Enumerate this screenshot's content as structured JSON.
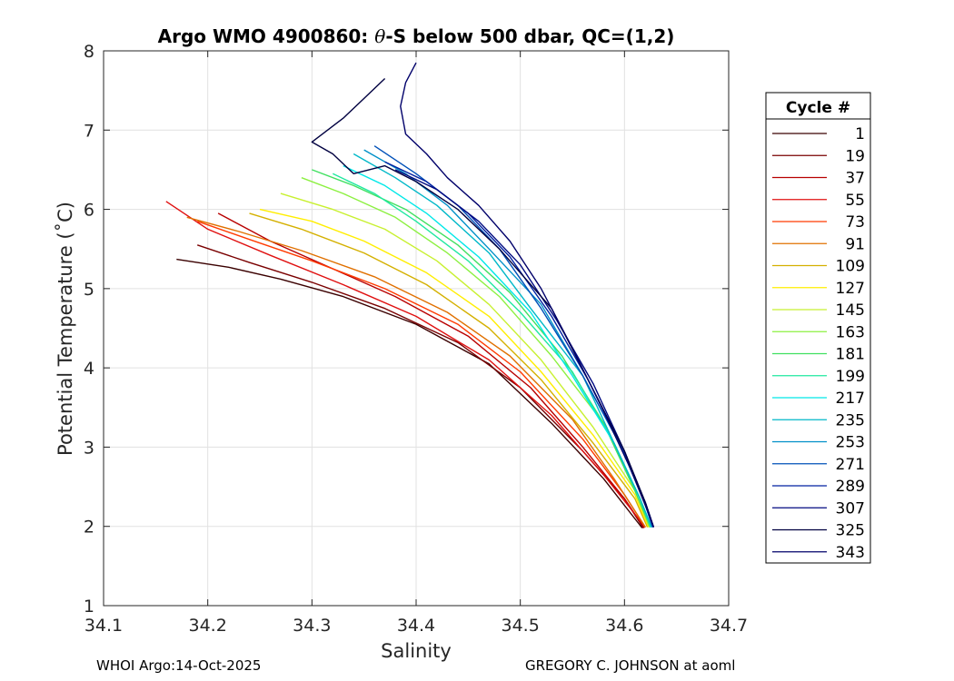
{
  "chart_data": {
    "type": "line",
    "title": {
      "prefix": "Argo WMO 4900860: ",
      "theta": "θ",
      "suffix": "-S below 500 dbar,  QC=(1,2)"
    },
    "xlabel": "Salinity",
    "ylabel": "Potential Temperature (˚C)",
    "xlim": [
      34.1,
      34.7
    ],
    "ylim": [
      1,
      8
    ],
    "xticks": [
      "34.1",
      "34.2",
      "34.3",
      "34.4",
      "34.5",
      "34.6",
      "34.7"
    ],
    "yticks": [
      "1",
      "2",
      "3",
      "4",
      "5",
      "6",
      "7",
      "8"
    ],
    "grid": true,
    "legend": {
      "title": "Cycle #",
      "placement": "right",
      "entries": [
        {
          "label": "1",
          "color": "#3a0000"
        },
        {
          "label": "19",
          "color": "#7a0000"
        },
        {
          "label": "37",
          "color": "#b80000"
        },
        {
          "label": "55",
          "color": "#e01010"
        },
        {
          "label": "73",
          "color": "#ff3a00"
        },
        {
          "label": "91",
          "color": "#e07000"
        },
        {
          "label": "109",
          "color": "#d4b000"
        },
        {
          "label": "127",
          "color": "#ffee00"
        },
        {
          "label": "145",
          "color": "#c8f030"
        },
        {
          "label": "163",
          "color": "#8cf040"
        },
        {
          "label": "181",
          "color": "#40e060"
        },
        {
          "label": "199",
          "color": "#20e8a0"
        },
        {
          "label": "217",
          "color": "#00e8e8"
        },
        {
          "label": "235",
          "color": "#00b8c8"
        },
        {
          "label": "253",
          "color": "#0090c8"
        },
        {
          "label": "271",
          "color": "#0050b8"
        },
        {
          "label": "289",
          "color": "#0020a0"
        },
        {
          "label": "307",
          "color": "#000a80"
        },
        {
          "label": "325",
          "color": "#000040"
        },
        {
          "label": "343",
          "color": "#00006a"
        }
      ]
    },
    "series": [
      {
        "name": "1",
        "color": "#3a0000",
        "points": [
          [
            34.17,
            5.37
          ],
          [
            34.22,
            5.27
          ],
          [
            34.27,
            5.12
          ],
          [
            34.33,
            4.9
          ],
          [
            34.4,
            4.55
          ],
          [
            34.47,
            4.05
          ],
          [
            34.53,
            3.3
          ],
          [
            34.58,
            2.6
          ],
          [
            34.617,
            1.98
          ]
        ]
      },
      {
        "name": "19",
        "color": "#7a0000",
        "points": [
          [
            34.19,
            5.55
          ],
          [
            34.24,
            5.33
          ],
          [
            34.3,
            5.08
          ],
          [
            34.37,
            4.75
          ],
          [
            34.44,
            4.32
          ],
          [
            34.5,
            3.75
          ],
          [
            34.56,
            2.95
          ],
          [
            34.6,
            2.35
          ],
          [
            34.618,
            1.98
          ]
        ]
      },
      {
        "name": "37",
        "color": "#b80000",
        "points": [
          [
            34.21,
            5.95
          ],
          [
            34.26,
            5.6
          ],
          [
            34.32,
            5.25
          ],
          [
            34.38,
            4.9
          ],
          [
            34.45,
            4.4
          ],
          [
            34.51,
            3.75
          ],
          [
            34.56,
            3.0
          ],
          [
            34.6,
            2.35
          ],
          [
            34.619,
            1.98
          ]
        ]
      },
      {
        "name": "55",
        "color": "#e01010",
        "points": [
          [
            34.16,
            6.1
          ],
          [
            34.2,
            5.75
          ],
          [
            34.26,
            5.42
          ],
          [
            34.33,
            5.05
          ],
          [
            34.4,
            4.65
          ],
          [
            34.47,
            4.1
          ],
          [
            34.53,
            3.4
          ],
          [
            34.58,
            2.65
          ],
          [
            34.62,
            1.99
          ]
        ]
      },
      {
        "name": "73",
        "color": "#ff3a00",
        "points": [
          [
            34.19,
            5.85
          ],
          [
            34.24,
            5.62
          ],
          [
            34.3,
            5.35
          ],
          [
            34.37,
            5.0
          ],
          [
            34.44,
            4.55
          ],
          [
            34.5,
            3.95
          ],
          [
            34.56,
            3.1
          ],
          [
            34.6,
            2.4
          ],
          [
            34.62,
            1.99
          ]
        ]
      },
      {
        "name": "91",
        "color": "#e07000",
        "points": [
          [
            34.18,
            5.9
          ],
          [
            34.23,
            5.72
          ],
          [
            34.29,
            5.48
          ],
          [
            34.36,
            5.15
          ],
          [
            34.43,
            4.7
          ],
          [
            34.49,
            4.15
          ],
          [
            34.55,
            3.35
          ],
          [
            34.59,
            2.6
          ],
          [
            34.62,
            1.99
          ]
        ]
      },
      {
        "name": "109",
        "color": "#d4b000",
        "points": [
          [
            34.24,
            5.95
          ],
          [
            34.29,
            5.75
          ],
          [
            34.35,
            5.45
          ],
          [
            34.41,
            5.05
          ],
          [
            34.47,
            4.5
          ],
          [
            34.52,
            3.85
          ],
          [
            34.57,
            3.05
          ],
          [
            34.61,
            2.35
          ],
          [
            34.622,
            1.99
          ]
        ]
      },
      {
        "name": "127",
        "color": "#ffee00",
        "points": [
          [
            34.25,
            6.0
          ],
          [
            34.3,
            5.85
          ],
          [
            34.35,
            5.6
          ],
          [
            34.41,
            5.2
          ],
          [
            34.47,
            4.65
          ],
          [
            34.52,
            3.95
          ],
          [
            34.57,
            3.15
          ],
          [
            34.61,
            2.4
          ],
          [
            34.623,
            1.99
          ]
        ]
      },
      {
        "name": "145",
        "color": "#c8f030",
        "points": [
          [
            34.27,
            6.2
          ],
          [
            34.32,
            6.0
          ],
          [
            34.37,
            5.75
          ],
          [
            34.42,
            5.35
          ],
          [
            34.47,
            4.8
          ],
          [
            34.52,
            4.1
          ],
          [
            34.57,
            3.25
          ],
          [
            34.61,
            2.45
          ],
          [
            34.624,
            1.99
          ]
        ]
      },
      {
        "name": "163",
        "color": "#8cf040",
        "points": [
          [
            34.29,
            6.4
          ],
          [
            34.33,
            6.2
          ],
          [
            34.38,
            5.9
          ],
          [
            34.43,
            5.45
          ],
          [
            34.48,
            4.9
          ],
          [
            34.53,
            4.15
          ],
          [
            34.58,
            3.3
          ],
          [
            34.61,
            2.45
          ],
          [
            34.624,
            1.99
          ]
        ]
      },
      {
        "name": "181",
        "color": "#40e060",
        "points": [
          [
            34.3,
            6.5
          ],
          [
            34.34,
            6.3
          ],
          [
            34.39,
            6.0
          ],
          [
            34.44,
            5.55
          ],
          [
            34.49,
            4.95
          ],
          [
            34.54,
            4.15
          ],
          [
            34.58,
            3.3
          ],
          [
            34.61,
            2.45
          ],
          [
            34.625,
            1.99
          ]
        ]
      },
      {
        "name": "199",
        "color": "#20e8a0",
        "points": [
          [
            34.32,
            6.45
          ],
          [
            34.36,
            6.2
          ],
          [
            34.4,
            5.85
          ],
          [
            34.45,
            5.35
          ],
          [
            34.5,
            4.7
          ],
          [
            34.55,
            3.95
          ],
          [
            34.59,
            3.05
          ],
          [
            34.615,
            2.35
          ],
          [
            34.625,
            1.99
          ]
        ]
      },
      {
        "name": "217",
        "color": "#00e8e8",
        "points": [
          [
            34.33,
            6.55
          ],
          [
            34.37,
            6.3
          ],
          [
            34.41,
            5.95
          ],
          [
            34.46,
            5.4
          ],
          [
            34.51,
            4.7
          ],
          [
            34.55,
            3.9
          ],
          [
            34.59,
            3.05
          ],
          [
            34.615,
            2.35
          ],
          [
            34.626,
            1.99
          ]
        ]
      },
      {
        "name": "235",
        "color": "#00b8c8",
        "points": [
          [
            34.34,
            6.7
          ],
          [
            34.38,
            6.4
          ],
          [
            34.42,
            6.05
          ],
          [
            34.47,
            5.45
          ],
          [
            34.51,
            4.75
          ],
          [
            34.56,
            3.9
          ],
          [
            34.59,
            3.05
          ],
          [
            34.615,
            2.35
          ],
          [
            34.626,
            1.99
          ]
        ]
      },
      {
        "name": "253",
        "color": "#0090c8",
        "points": [
          [
            34.35,
            6.75
          ],
          [
            34.39,
            6.45
          ],
          [
            34.43,
            6.05
          ],
          [
            34.47,
            5.5
          ],
          [
            34.52,
            4.8
          ],
          [
            34.56,
            3.9
          ],
          [
            34.595,
            3.05
          ],
          [
            34.618,
            2.35
          ],
          [
            34.627,
            1.99
          ]
        ]
      },
      {
        "name": "271",
        "color": "#0050b8",
        "points": [
          [
            34.36,
            6.8
          ],
          [
            34.4,
            6.45
          ],
          [
            34.44,
            6.05
          ],
          [
            34.48,
            5.5
          ],
          [
            34.52,
            4.75
          ],
          [
            34.56,
            3.9
          ],
          [
            34.595,
            3.05
          ],
          [
            34.618,
            2.35
          ],
          [
            34.627,
            1.99
          ]
        ]
      },
      {
        "name": "289",
        "color": "#0020a0",
        "points": [
          [
            34.37,
            6.6
          ],
          [
            34.41,
            6.35
          ],
          [
            34.45,
            5.95
          ],
          [
            34.49,
            5.4
          ],
          [
            34.53,
            4.65
          ],
          [
            34.565,
            3.85
          ],
          [
            34.598,
            3.0
          ],
          [
            34.62,
            2.3
          ],
          [
            34.628,
            1.99
          ]
        ]
      },
      {
        "name": "307",
        "color": "#000a80",
        "points": [
          [
            34.38,
            6.5
          ],
          [
            34.42,
            6.25
          ],
          [
            34.46,
            5.85
          ],
          [
            34.5,
            5.3
          ],
          [
            34.535,
            4.6
          ],
          [
            34.57,
            3.8
          ],
          [
            34.6,
            2.95
          ],
          [
            34.62,
            2.3
          ],
          [
            34.628,
            1.99
          ]
        ]
      },
      {
        "name": "325",
        "color": "#000040",
        "points": [
          [
            34.37,
            7.65
          ],
          [
            34.35,
            7.4
          ],
          [
            34.33,
            7.15
          ],
          [
            34.3,
            6.85
          ],
          [
            34.32,
            6.7
          ],
          [
            34.34,
            6.45
          ],
          [
            34.37,
            6.55
          ],
          [
            34.4,
            6.35
          ],
          [
            34.44,
            6.0
          ],
          [
            34.48,
            5.5
          ],
          [
            34.53,
            4.75
          ],
          [
            34.565,
            3.85
          ],
          [
            34.6,
            2.95
          ],
          [
            34.62,
            2.3
          ],
          [
            34.628,
            1.99
          ]
        ]
      },
      {
        "name": "343",
        "color": "#00006a",
        "points": [
          [
            34.4,
            7.85
          ],
          [
            34.39,
            7.6
          ],
          [
            34.385,
            7.3
          ],
          [
            34.39,
            6.95
          ],
          [
            34.41,
            6.7
          ],
          [
            34.43,
            6.4
          ],
          [
            34.46,
            6.05
          ],
          [
            34.49,
            5.6
          ],
          [
            34.52,
            5.0
          ],
          [
            34.55,
            4.25
          ],
          [
            34.58,
            3.45
          ],
          [
            34.605,
            2.75
          ],
          [
            34.622,
            2.2
          ],
          [
            34.628,
            1.99
          ]
        ]
      }
    ]
  },
  "footer": {
    "left": "WHOI Argo:14-Oct-2025",
    "right": "GREGORY C. JOHNSON at aoml"
  }
}
